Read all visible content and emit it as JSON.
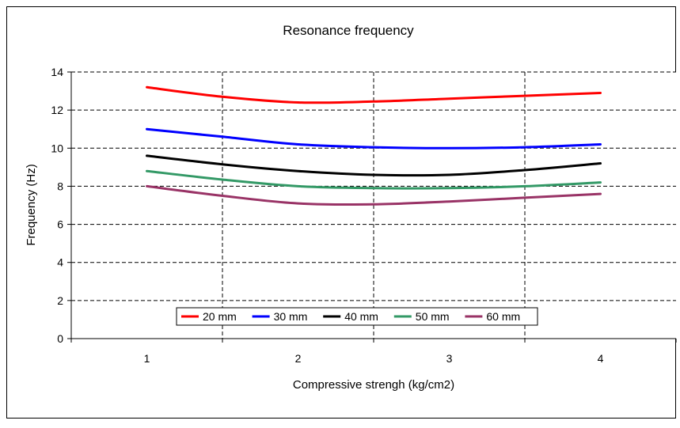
{
  "chart_data": {
    "type": "line",
    "title": "Resonance frequency",
    "xlabel": "Compressive strengh (kg/cm2)",
    "ylabel": "Frequency (Hz)",
    "x": [
      1,
      1.5,
      2,
      2.5,
      3,
      3.5,
      4
    ],
    "x_ticks": [
      "1",
      "2",
      "3",
      "4"
    ],
    "x_tick_values": [
      1,
      2,
      3,
      4
    ],
    "y_ticks": [
      "0",
      "2",
      "4",
      "6",
      "8",
      "10",
      "12",
      "14"
    ],
    "xlim": [
      0.5,
      4.5
    ],
    "ylim": [
      0,
      14
    ],
    "grid": true,
    "legend_position": "bottom-center",
    "series": [
      {
        "name": "20 mm",
        "color": "#ff0000",
        "values": [
          13.2,
          12.7,
          12.4,
          12.45,
          12.6,
          12.75,
          12.9
        ]
      },
      {
        "name": "30 mm",
        "color": "#0000ff",
        "values": [
          11.0,
          10.6,
          10.2,
          10.05,
          10.0,
          10.05,
          10.2
        ]
      },
      {
        "name": "40 mm",
        "color": "#000000",
        "values": [
          9.6,
          9.15,
          8.8,
          8.6,
          8.6,
          8.85,
          9.2
        ]
      },
      {
        "name": "50 mm",
        "color": "#339966",
        "values": [
          8.8,
          8.35,
          8.0,
          7.9,
          7.9,
          8.0,
          8.2
        ]
      },
      {
        "name": "60 mm",
        "color": "#993366",
        "values": [
          8.0,
          7.5,
          7.1,
          7.05,
          7.2,
          7.4,
          7.6
        ]
      }
    ]
  }
}
